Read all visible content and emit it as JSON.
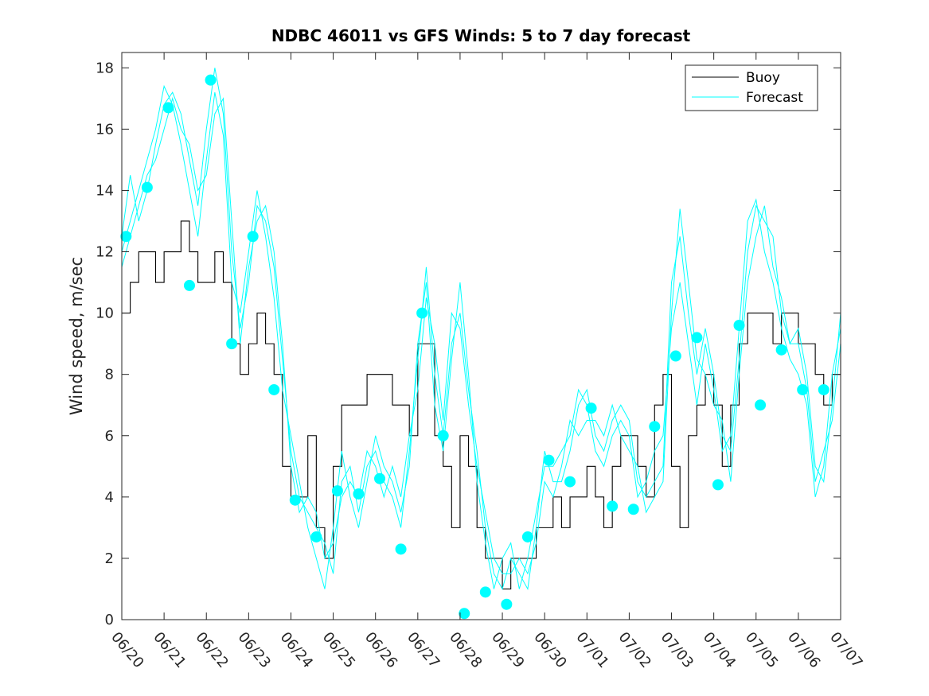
{
  "chart_data": {
    "type": "line",
    "title": "NDBC 46011 vs GFS Winds: 5 to 7 day forecast",
    "xlabel": "",
    "ylabel": "Wind speed, m/sec",
    "xlim": [
      "06/20",
      "07/07"
    ],
    "ylim": [
      0,
      18.5
    ],
    "grid": false,
    "legend_position": "top-right",
    "x_tick_labels": [
      "06/20",
      "06/21",
      "06/22",
      "06/23",
      "06/24",
      "06/25",
      "06/26",
      "06/27",
      "06/28",
      "06/29",
      "06/30",
      "07/01",
      "07/02",
      "07/03",
      "07/04",
      "07/05",
      "07/06",
      "07/07"
    ],
    "y_ticks": [
      0,
      2,
      4,
      6,
      8,
      10,
      12,
      14,
      16,
      18
    ],
    "colors": {
      "buoy": "#000000",
      "forecast": "#00ffff",
      "markers": "#00ffff"
    },
    "series": [
      {
        "name": "Buoy",
        "color": "#000000",
        "x_days": [
          0.0,
          0.2,
          0.4,
          0.6,
          0.8,
          1.0,
          1.2,
          1.4,
          1.6,
          1.8,
          2.0,
          2.2,
          2.4,
          2.6,
          2.8,
          3.0,
          3.2,
          3.4,
          3.6,
          3.8,
          4.0,
          4.2,
          4.4,
          4.6,
          4.8,
          5.0,
          5.2,
          5.4,
          5.6,
          5.8,
          6.0,
          6.2,
          6.4,
          6.6,
          6.8,
          7.0,
          7.2,
          7.4,
          7.6,
          7.8,
          8.0,
          8.2,
          8.4,
          8.6,
          8.8,
          9.0,
          9.2,
          9.4,
          9.6,
          9.8,
          10.0,
          10.2,
          10.4,
          10.6,
          10.8,
          11.0,
          11.2,
          11.4,
          11.6,
          11.8,
          12.0,
          12.2,
          12.4,
          12.6,
          12.8,
          13.0,
          13.2,
          13.4,
          13.6,
          13.8,
          14.0,
          14.2,
          14.4,
          14.6,
          14.8,
          15.0,
          15.2,
          15.4,
          15.6,
          15.8,
          16.0,
          16.2,
          16.4,
          16.6,
          16.8,
          17.0
        ],
        "values": [
          10,
          11,
          12,
          12,
          11,
          12,
          12,
          13,
          12,
          11,
          11,
          12,
          11,
          9,
          8,
          9,
          10,
          9,
          8,
          5,
          4,
          4,
          6,
          3,
          2,
          5,
          7,
          7,
          7,
          8,
          8,
          8,
          7,
          7,
          6,
          9,
          9,
          6,
          5,
          3,
          6,
          5,
          3,
          2,
          2,
          1,
          2,
          2,
          2,
          3,
          3,
          4,
          3,
          4,
          4,
          5,
          4,
          3,
          5,
          6,
          6,
          5,
          4,
          7,
          8,
          5,
          3,
          6,
          7,
          8,
          7,
          5,
          7,
          9,
          10,
          10,
          10,
          9,
          10,
          10,
          9,
          9,
          8,
          7,
          8,
          9
        ]
      },
      {
        "name": "Forecast",
        "color": "#00ffff",
        "runs": [
          {
            "x_days": [
              0.0,
              0.2,
              0.4,
              0.6,
              0.8,
              1.0,
              1.2,
              1.4,
              1.6,
              1.8,
              2.0,
              2.2,
              2.4,
              2.6,
              2.8,
              3.0,
              3.2,
              3.4,
              3.6,
              3.8,
              4.0,
              4.2,
              4.4,
              4.6,
              4.8,
              5.0,
              5.2,
              5.4,
              5.6,
              5.8,
              6.0,
              6.2,
              6.4,
              6.6,
              6.8,
              7.0,
              7.2,
              7.4,
              7.6,
              7.8,
              8.0,
              8.2,
              8.4,
              8.6,
              8.8,
              9.0,
              9.2,
              9.4,
              9.6,
              9.8,
              10.0,
              10.2,
              10.4,
              10.6,
              10.8,
              11.0,
              11.2,
              11.4,
              11.6,
              11.8,
              12.0,
              12.2,
              12.4,
              12.6,
              12.8,
              13.0,
              13.2,
              13.4,
              13.6,
              13.8,
              14.0,
              14.2,
              14.4,
              14.6,
              14.8,
              15.0,
              15.2,
              15.4,
              15.6,
              15.8,
              16.0,
              16.2,
              16.4,
              16.6,
              16.8,
              17.0
            ],
            "values": [
              12.5,
              14.5,
              13.0,
              14.0,
              15.5,
              16.8,
              17.2,
              16.5,
              15.0,
              13.5,
              16.0,
              18.0,
              16.5,
              12.0,
              9.5,
              11.0,
              13.5,
              13.0,
              11.5,
              8.5,
              5.5,
              4.0,
              3.5,
              3.0,
              2.5,
              1.5,
              4.5,
              5.0,
              3.5,
              5.0,
              5.5,
              4.5,
              4.0,
              3.0,
              5.5,
              8.5,
              11.5,
              8.0,
              6.0,
              9.0,
              10.0,
              7.5,
              5.5,
              3.0,
              1.5,
              1.0,
              2.0,
              1.5,
              1.0,
              3.0,
              5.5,
              4.5,
              4.5,
              5.5,
              7.0,
              7.5,
              6.0,
              5.5,
              6.5,
              7.0,
              6.5,
              4.5,
              4.0,
              4.5,
              5.0,
              11.0,
              12.5,
              10.0,
              8.0,
              9.5,
              8.0,
              6.0,
              5.5,
              8.5,
              12.0,
              13.5,
              13.0,
              12.5,
              10.0,
              9.0,
              9.5,
              8.0,
              5.0,
              4.5,
              7.0,
              10.0
            ]
          },
          {
            "x_days": [
              0.0,
              0.2,
              0.4,
              0.6,
              0.8,
              1.0,
              1.2,
              1.4,
              1.6,
              1.8,
              2.0,
              2.2,
              2.4,
              2.6,
              2.8,
              3.0,
              3.2,
              3.4,
              3.6,
              3.8,
              4.0,
              4.2,
              4.4,
              4.6,
              4.8,
              5.0,
              5.2,
              5.4,
              5.6,
              5.8,
              6.0,
              6.2,
              6.4,
              6.6,
              6.8,
              7.0,
              7.2,
              7.4,
              7.6,
              7.8,
              8.0,
              8.2,
              8.4,
              8.6,
              8.8,
              9.0,
              9.2,
              9.4,
              9.6,
              9.8,
              10.0,
              10.2,
              10.4,
              10.6,
              10.8,
              11.0,
              11.2,
              11.4,
              11.6,
              11.8,
              12.0,
              12.2,
              12.4,
              12.6,
              12.8,
              13.0,
              13.2,
              13.4,
              13.6,
              13.8,
              14.0,
              14.2,
              14.4,
              14.6,
              14.8,
              15.0,
              15.2,
              15.4,
              15.6,
              15.8,
              16.0,
              16.2,
              16.4,
              16.6,
              16.8,
              17.0
            ],
            "values": [
              12.0,
              13.0,
              14.0,
              15.0,
              16.0,
              17.4,
              16.8,
              15.5,
              14.0,
              12.5,
              15.0,
              17.2,
              15.8,
              11.0,
              10.0,
              12.0,
              14.0,
              12.5,
              10.5,
              7.5,
              6.0,
              4.5,
              3.0,
              2.0,
              1.0,
              3.0,
              5.5,
              4.0,
              3.0,
              4.5,
              6.0,
              5.0,
              4.5,
              3.5,
              5.0,
              9.0,
              11.0,
              7.0,
              5.5,
              8.5,
              11.0,
              8.0,
              4.5,
              2.5,
              1.0,
              2.0,
              2.5,
              1.0,
              2.0,
              3.5,
              5.0,
              5.0,
              5.5,
              6.0,
              7.5,
              7.0,
              5.5,
              5.0,
              6.0,
              6.5,
              6.0,
              4.0,
              4.5,
              5.5,
              6.0,
              9.5,
              11.0,
              9.0,
              7.0,
              9.0,
              7.5,
              5.5,
              6.0,
              9.5,
              13.0,
              13.7,
              12.0,
              11.0,
              9.5,
              8.5,
              8.0,
              7.0,
              4.0,
              5.0,
              8.0,
              9.5
            ]
          },
          {
            "x_days": [
              0.0,
              0.2,
              0.4,
              0.6,
              0.8,
              1.0,
              1.2,
              1.4,
              1.6,
              1.8,
              2.0,
              2.2,
              2.4,
              2.6,
              2.8,
              3.0,
              3.2,
              3.4,
              3.6,
              3.8,
              4.0,
              4.2,
              4.4,
              4.6,
              4.8,
              5.0,
              5.2,
              5.4,
              5.6,
              5.8,
              6.0,
              6.2,
              6.4,
              6.6,
              6.8,
              7.0,
              7.2,
              7.4,
              7.6,
              7.8,
              8.0,
              8.2,
              8.4,
              8.6,
              8.8,
              9.0,
              9.2,
              9.4,
              9.6,
              9.8,
              10.0,
              10.2,
              10.4,
              10.6,
              10.8,
              11.0,
              11.2,
              11.4,
              11.6,
              11.8,
              12.0,
              12.2,
              12.4,
              12.6,
              12.8,
              13.0,
              13.2,
              13.4,
              13.6,
              13.8,
              14.0,
              14.2,
              14.4,
              14.6,
              14.8,
              15.0,
              15.2,
              15.4,
              15.6,
              15.8,
              16.0,
              16.2,
              16.4,
              16.6,
              16.8,
              17.0
            ],
            "values": [
              11.5,
              12.5,
              13.5,
              14.5,
              15.0,
              16.0,
              17.0,
              16.0,
              15.5,
              14.0,
              14.5,
              16.5,
              17.0,
              13.0,
              9.0,
              11.5,
              13.0,
              13.5,
              12.0,
              9.0,
              5.0,
              3.5,
              4.0,
              3.5,
              2.0,
              2.5,
              4.0,
              4.5,
              4.0,
              5.5,
              5.0,
              4.0,
              5.0,
              4.0,
              6.0,
              7.5,
              10.5,
              9.0,
              6.5,
              10.0,
              9.5,
              7.0,
              5.0,
              3.5,
              2.0,
              1.5,
              1.5,
              2.0,
              1.5,
              2.5,
              4.5,
              4.0,
              5.0,
              6.5,
              6.0,
              6.5,
              6.5,
              6.0,
              7.0,
              6.0,
              5.5,
              5.0,
              3.5,
              4.0,
              4.5,
              10.0,
              13.4,
              11.0,
              8.5,
              8.0,
              7.0,
              6.5,
              4.5,
              8.0,
              11.0,
              12.5,
              13.5,
              11.5,
              10.5,
              9.0,
              9.0,
              7.5,
              4.5,
              5.5,
              6.5,
              9.0
            ]
          }
        ]
      },
      {
        "name": "",
        "marker": "circle",
        "color": "#00ffff",
        "x_days": [
          0.1,
          0.6,
          1.1,
          1.6,
          2.1,
          2.6,
          3.1,
          3.6,
          4.1,
          4.6,
          5.1,
          5.6,
          6.1,
          6.6,
          7.1,
          7.6,
          8.1,
          8.6,
          9.1,
          9.6,
          10.1,
          10.6,
          11.1,
          11.6,
          12.1,
          12.6,
          13.1,
          13.6,
          14.1,
          14.6,
          15.1,
          15.6,
          16.1,
          16.6
        ],
        "values": [
          12.5,
          14.1,
          16.7,
          10.9,
          17.6,
          9.0,
          12.5,
          7.5,
          3.9,
          2.7,
          4.2,
          4.1,
          4.6,
          2.3,
          10.0,
          6.0,
          0.2,
          0.9,
          0.5,
          2.7,
          5.2,
          4.5,
          6.9,
          3.7,
          3.6,
          6.3,
          8.6,
          9.2,
          4.4,
          9.6,
          7.0,
          8.8,
          7.5,
          7.5
        ]
      }
    ]
  }
}
